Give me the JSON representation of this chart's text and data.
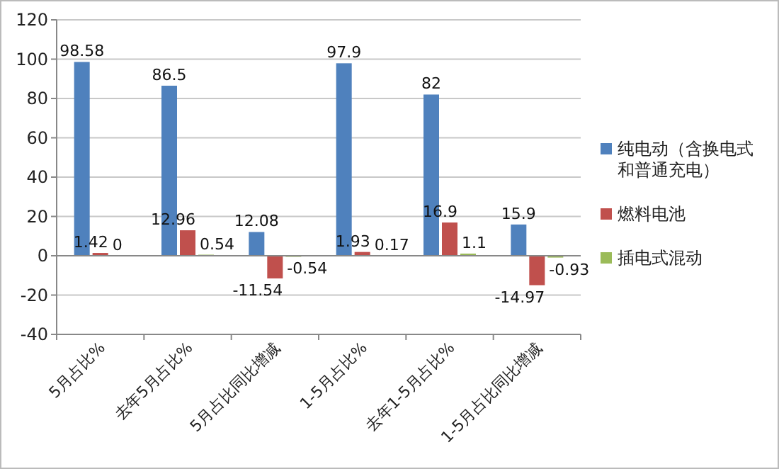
{
  "chart_data": {
    "type": "bar",
    "categories": [
      "5月占比%",
      "去年5月占比%",
      "5月占比同比增减",
      "1-5月占比%",
      "去年1-5月占比%",
      "1-5月占比同比增减"
    ],
    "series": [
      {
        "name": "纯电动（含换电式和普通充电）",
        "color": "#4f81bd",
        "values": [
          98.58,
          86.5,
          12.08,
          97.9,
          82,
          15.9
        ]
      },
      {
        "name": "燃料电池",
        "color": "#c0504d",
        "values": [
          1.42,
          12.96,
          -11.54,
          1.93,
          16.9,
          -14.97
        ]
      },
      {
        "name": "插电式混动",
        "color": "#9bbb59",
        "values": [
          0,
          0.54,
          -0.54,
          0.17,
          1.1,
          -0.93
        ]
      }
    ],
    "ylim": [
      -40,
      120
    ],
    "yticks": [
      -40,
      -20,
      0,
      20,
      40,
      60,
      80,
      100,
      120
    ],
    "grid": "y",
    "legend": "right",
    "data_labels": true
  }
}
